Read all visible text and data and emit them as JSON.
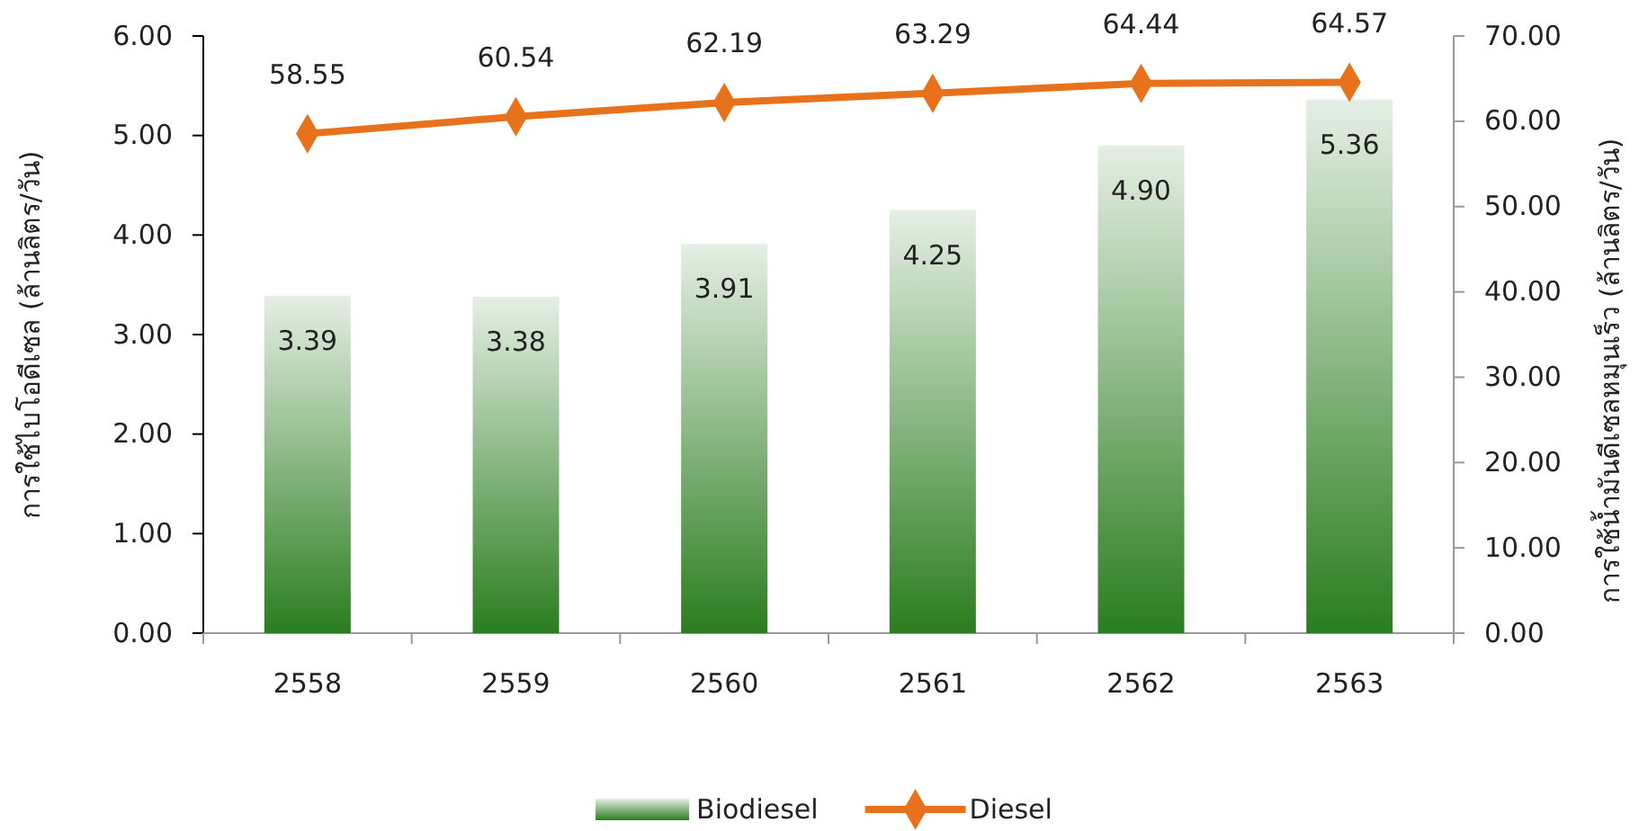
{
  "chart_data": {
    "type": "bar",
    "categories": [
      "2558",
      "2559",
      "2560",
      "2561",
      "2562",
      "2563"
    ],
    "ylabel": "การใช้ไบโอดีเซล (ล้านลิตร/วัน)",
    "y2label": "การใช้น้ำมันดีเซลหมุนเร็ว (ล้านลิตร/วัน)",
    "ylim": [
      0,
      6
    ],
    "yticks": [
      {
        "value": 0,
        "label": "0.00"
      },
      {
        "value": 1,
        "label": "1.00"
      },
      {
        "value": 2,
        "label": "2.00"
      },
      {
        "value": 3,
        "label": "3.00"
      },
      {
        "value": 4,
        "label": "4.00"
      },
      {
        "value": 5,
        "label": "5.00"
      },
      {
        "value": 6,
        "label": "6.00"
      }
    ],
    "y2lim": [
      0,
      70
    ],
    "y2ticks": [
      {
        "value": 0,
        "label": "0.00"
      },
      {
        "value": 10,
        "label": "10.00"
      },
      {
        "value": 20,
        "label": "20.00"
      },
      {
        "value": 30,
        "label": "30.00"
      },
      {
        "value": 40,
        "label": "40.00"
      },
      {
        "value": 50,
        "label": "50.00"
      },
      {
        "value": 60,
        "label": "60.00"
      },
      {
        "value": 70,
        "label": "70.00"
      }
    ],
    "series": [
      {
        "name": "Biodiesel",
        "color": "#2a7d1e",
        "values": [
          3.39,
          3.38,
          3.91,
          4.25,
          4.9,
          5.36
        ],
        "value_labels": [
          "3.39",
          "3.38",
          "3.91",
          "4.25",
          "4.90",
          "5.36"
        ]
      },
      {
        "name": "Diesel",
        "type": "line",
        "axis": "y2",
        "color": "#e8711c",
        "marker": "diamond",
        "values": [
          58.55,
          60.54,
          62.19,
          63.29,
          64.44,
          64.57
        ],
        "value_labels": [
          "58.55",
          "60.54",
          "62.19",
          "63.29",
          "64.44",
          "64.57"
        ]
      }
    ],
    "legend": "bottom",
    "grid": false
  }
}
